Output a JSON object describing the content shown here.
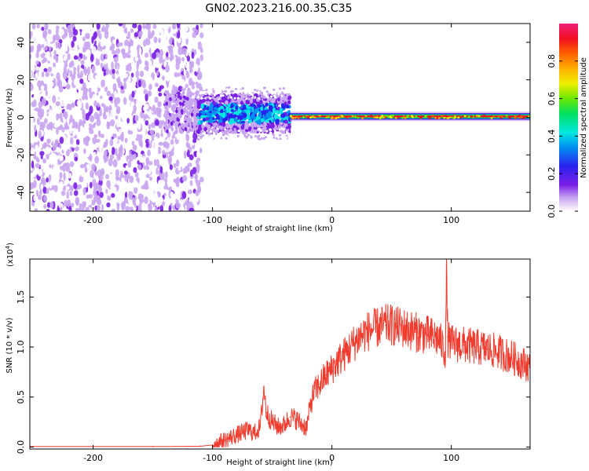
{
  "title": "GN02.2023.216.00.35.C35",
  "colors": {
    "snr_line": "#f03c2e",
    "background": "#ffffff",
    "axis": "#000000"
  },
  "chart_data": [
    {
      "type": "heatmap",
      "title": "GN02.2023.216.00.35.C35",
      "xlabel": "Height of straight line (km)",
      "ylabel": "Frequency (Hz)",
      "xlim": [
        -253,
        166
      ],
      "ylim": [
        -50,
        50
      ],
      "xticks": [
        -200,
        -100,
        0,
        100
      ],
      "xtick_labels": [
        "-200",
        "-100",
        "0",
        "100"
      ],
      "yticks": [
        -40,
        -20,
        0,
        20,
        40
      ],
      "ytick_labels": [
        "-40",
        "-20",
        "0",
        "20",
        "40"
      ],
      "colormap": "rainbow (white-purple-blue-cyan-green-yellow-orange-red-magenta)",
      "regions": [
        {
          "x_range": [
            -253,
            -112
          ],
          "freq_range": [
            -50,
            50
          ],
          "amplitude": 0.15,
          "description": "broadband low-amplitude noise"
        },
        {
          "x_range": [
            -112,
            -35
          ],
          "freq_range": [
            -8,
            12
          ],
          "amplitude": 0.45,
          "description": "scattered mid-amplitude spots near 0 Hz"
        },
        {
          "x_range": [
            -35,
            166
          ],
          "freq_range": [
            -1,
            1.5
          ],
          "amplitude": 0.95,
          "description": "narrow high-amplitude line at ~0.5 Hz"
        }
      ],
      "colorbar": {
        "label": "Normalized spectral amplitude",
        "range": [
          0,
          1
        ],
        "ticks": [
          0.0,
          0.2,
          0.4,
          0.6,
          0.8
        ],
        "tick_labels": [
          "0.0",
          "0.2",
          "0.4",
          "0.6",
          "0.8"
        ]
      }
    },
    {
      "type": "line",
      "xlabel": "Height of straight line (km)",
      "ylabel": "SNR (10 * v/v)",
      "yscale_label": "(x10",
      "yscale_exp": "4",
      "xlim": [
        -253,
        166
      ],
      "ylim": [
        -0.02,
        1.88
      ],
      "xticks": [
        -200,
        -100,
        0,
        100
      ],
      "xtick_labels": [
        "-200",
        "-100",
        "0",
        "100"
      ],
      "yticks": [
        0.0,
        0.5,
        1.0,
        1.5
      ],
      "ytick_labels": [
        "0.0",
        "0.5",
        "1.0",
        "1.5"
      ],
      "grid": false,
      "series": [
        {
          "color": "#f03c2e",
          "x": [
            -253,
            -200,
            -150,
            -110,
            -100,
            -90,
            -80,
            -70,
            -65,
            -60,
            -57,
            -55,
            -50,
            -45,
            -40,
            -35,
            -30,
            -25,
            -21,
            -20,
            -18,
            -15,
            -10,
            -5,
            0,
            5,
            10,
            15,
            20,
            25,
            30,
            35,
            40,
            45,
            50,
            55,
            60,
            70,
            80,
            90,
            95,
            96,
            97,
            98,
            100,
            110,
            120,
            130,
            140,
            150,
            160,
            166
          ],
          "y": [
            0.005,
            0.005,
            0.005,
            0.008,
            0.02,
            0.07,
            0.12,
            0.17,
            0.14,
            0.2,
            0.6,
            0.35,
            0.25,
            0.2,
            0.22,
            0.3,
            0.28,
            0.22,
            0.2,
            0.28,
            0.42,
            0.55,
            0.63,
            0.72,
            0.78,
            0.86,
            0.92,
            0.99,
            1.06,
            1.12,
            1.16,
            1.18,
            1.2,
            1.22,
            1.22,
            1.2,
            1.19,
            1.15,
            1.12,
            1.08,
            0.95,
            1.72,
            1.1,
            1.06,
            1.04,
            1.02,
            1.0,
            0.98,
            0.95,
            0.9,
            0.84,
            0.8
          ]
        }
      ]
    }
  ]
}
